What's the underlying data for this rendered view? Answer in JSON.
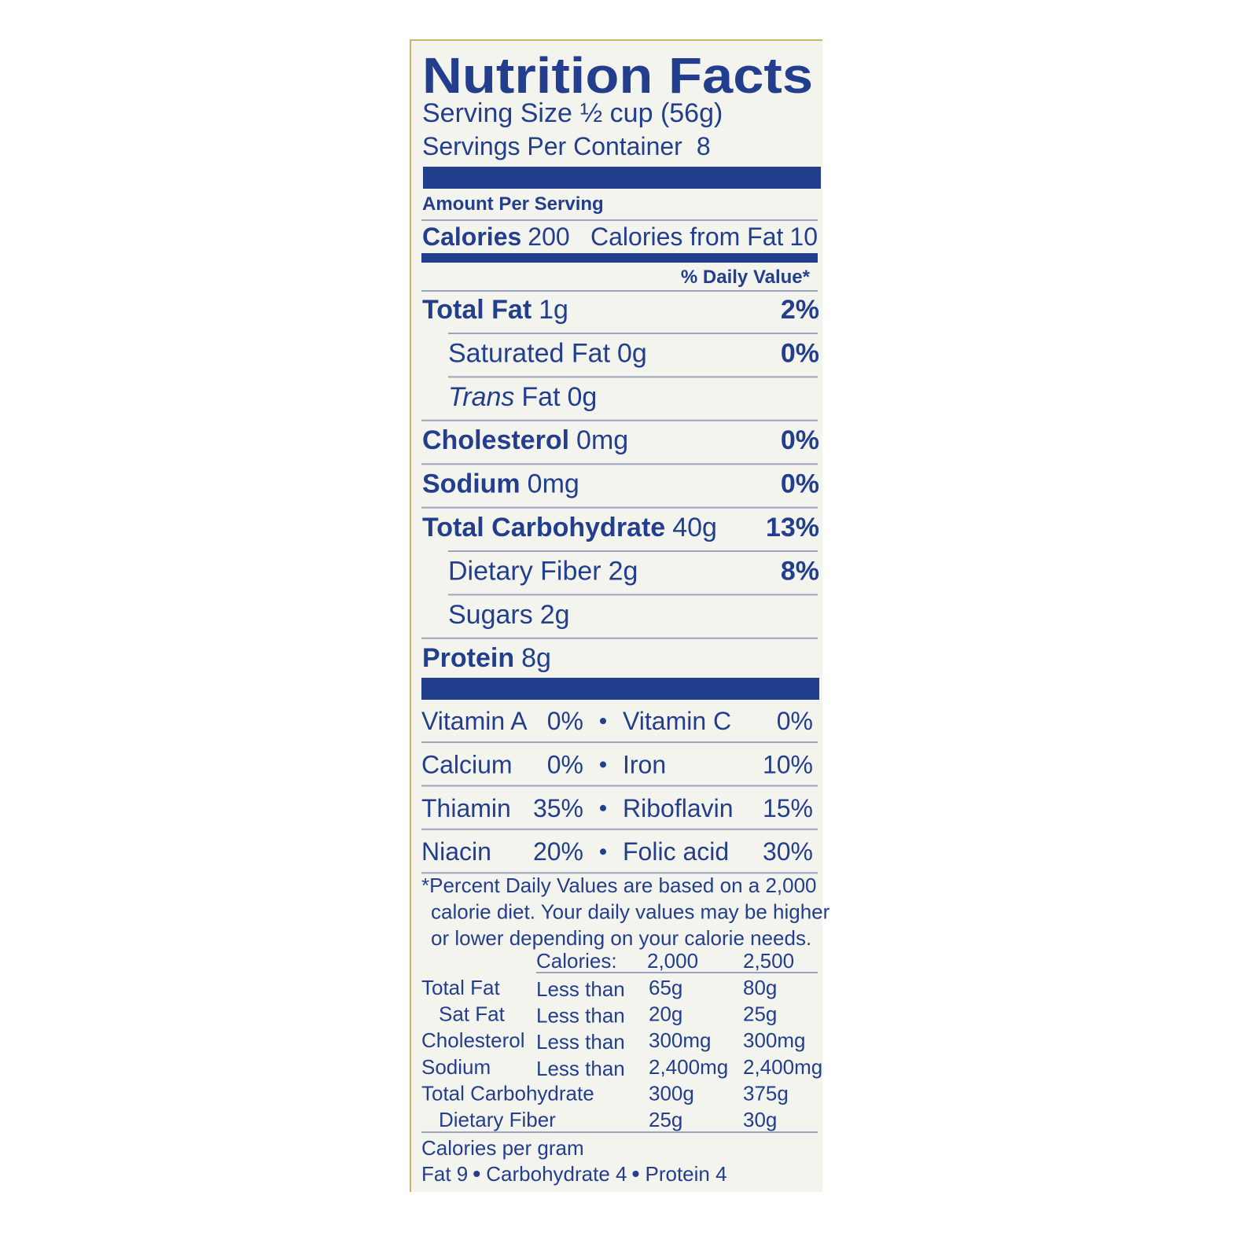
{
  "title": "Nutrition Facts",
  "serving_size": {
    "label": "Serving Size",
    "value": "½ cup (56g)"
  },
  "servings_per_container": {
    "label": "Servings Per Container",
    "value": "8"
  },
  "amount_per_serving": "Amount Per Serving",
  "calories": {
    "label": "Calories",
    "value": "200",
    "from_fat_label": "Calories from Fat",
    "from_fat_value": "10"
  },
  "daily_value_header": "% Daily Value*",
  "nutrients": [
    {
      "name": "Total Fat",
      "amount": "1g",
      "dv": "2%",
      "sub": [
        {
          "name": "Saturated Fat",
          "amount": "0g",
          "dv": "0%"
        },
        {
          "prefix": "Trans",
          "name": "Fat",
          "amount": "0g"
        }
      ]
    },
    {
      "name": "Cholesterol",
      "amount": "0mg",
      "dv": "0%"
    },
    {
      "name": "Sodium",
      "amount": "0mg",
      "dv": "0%"
    },
    {
      "name": "Total Carbohydrate",
      "amount": "40g",
      "dv": "13%",
      "sub": [
        {
          "name": "Dietary Fiber",
          "amount": "2g",
          "dv": "8%"
        },
        {
          "name": "Sugars",
          "amount": "2g"
        }
      ]
    },
    {
      "name": "Protein",
      "amount": "8g"
    }
  ],
  "vitamins": [
    [
      {
        "name": "Vitamin A",
        "value": "0%"
      },
      {
        "name": "Vitamin C",
        "value": "0%"
      }
    ],
    [
      {
        "name": "Calcium",
        "value": "0%"
      },
      {
        "name": "Iron",
        "value": "10%"
      }
    ],
    [
      {
        "name": "Thiamin",
        "value": "35%"
      },
      {
        "name": "Riboflavin",
        "value": "15%"
      }
    ],
    [
      {
        "name": "Niacin",
        "value": "20%"
      },
      {
        "name": "Folic acid",
        "value": "30%"
      }
    ]
  ],
  "footnote": [
    "*Percent Daily Values are based on a 2,000",
    "calorie diet. Your daily values may be higher",
    "or lower depending on your calorie needs."
  ],
  "reference": {
    "header": {
      "label": "Calories:",
      "columns": [
        "2,000",
        "2,500"
      ]
    },
    "rows": [
      {
        "name": "Total Fat",
        "qualifier": "Less than",
        "values": [
          "65g",
          "80g"
        ],
        "sub": [
          {
            "name": "Sat Fat",
            "qualifier": "Less than",
            "values": [
              "20g",
              "25g"
            ]
          }
        ]
      },
      {
        "name": "Cholesterol",
        "qualifier": "Less than",
        "values": [
          "300mg",
          "300mg"
        ]
      },
      {
        "name": "Sodium",
        "qualifier": "Less than",
        "values": [
          "2,400mg",
          "2,400mg"
        ]
      },
      {
        "name": "Total Carbohydrate",
        "values": [
          "300g",
          "375g"
        ],
        "sub": [
          {
            "name": "Dietary Fiber",
            "values": [
              "25g",
              "30g"
            ]
          }
        ]
      }
    ]
  },
  "calories_per_gram": {
    "label": "Calories per gram",
    "items": [
      "Fat 9",
      "Carbohydrate 4",
      "Protein 4"
    ]
  }
}
